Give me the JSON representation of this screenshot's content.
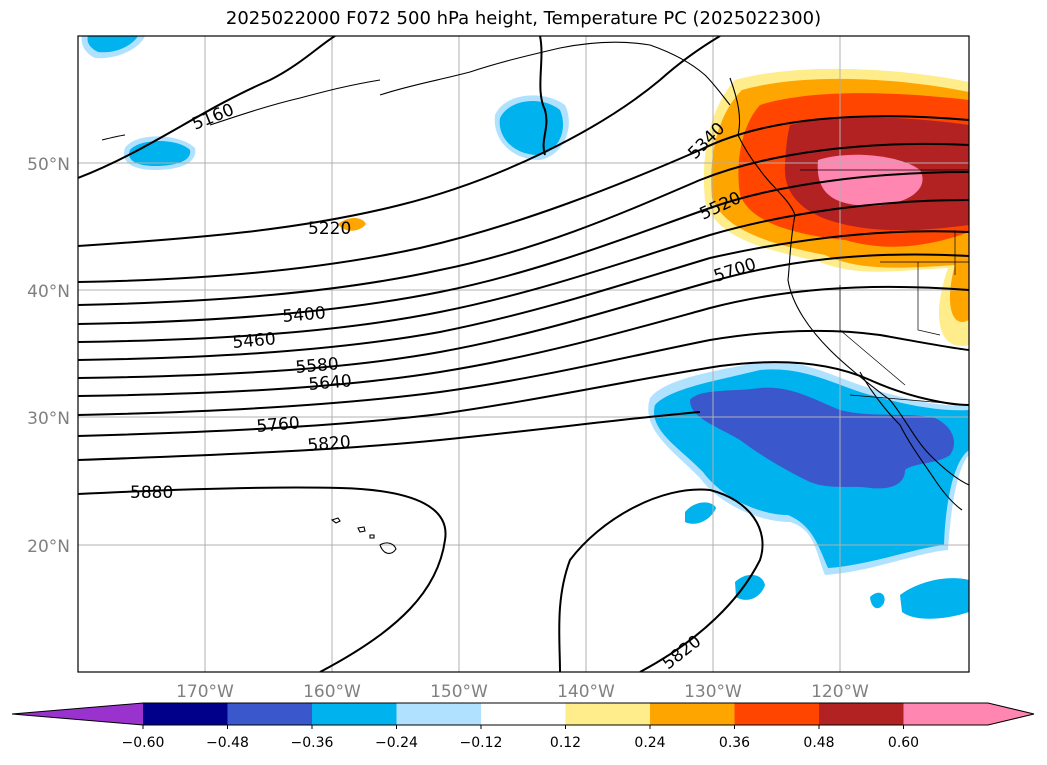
{
  "title": "2025022000 F072 500 hPa height, Temperature PC (2025022300)",
  "lat_labels": [
    "50°N",
    "40°N",
    "30°N",
    "20°N"
  ],
  "lon_labels": [
    "170°W",
    "160°W",
    "150°W",
    "140°W",
    "130°W",
    "120°W"
  ],
  "contour_labels": [
    "5160",
    "5220",
    "5340",
    "5400",
    "5460",
    "5520",
    "5580",
    "5640",
    "5700",
    "5760",
    "5820",
    "5880",
    "5820"
  ],
  "colorbar": {
    "ticks": [
      "−0.60",
      "−0.48",
      "−0.36",
      "−0.24",
      "−0.12",
      "0.12",
      "0.24",
      "0.36",
      "0.48",
      "0.60"
    ],
    "colors": [
      "#9a32cd",
      "#00008b",
      "#3a57cc",
      "#00b2ee",
      "#b0e2ff",
      "#ffffff",
      "#ffec8b",
      "#ffa500",
      "#ff4500",
      "#b22222",
      "#ff86b0",
      "#ff86b0"
    ]
  }
}
